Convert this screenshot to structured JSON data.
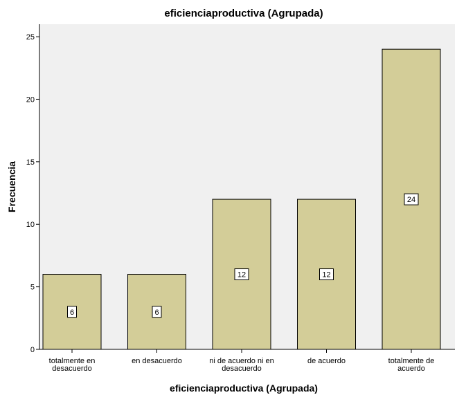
{
  "chart_data": {
    "type": "bar",
    "title": "eficienciaproductiva (Agrupada)",
    "xlabel": "eficienciaproductiva (Agrupada)",
    "ylabel": "Frecuencia",
    "categories": [
      [
        "totalmente en",
        "desacuerdo"
      ],
      [
        "en desacuerdo"
      ],
      [
        "ni de acuerdo ni en",
        "desacuerdo"
      ],
      [
        "de acuerdo"
      ],
      [
        "totalmente de",
        "acuerdo"
      ]
    ],
    "values": [
      6,
      6,
      12,
      12,
      24
    ],
    "ylim": [
      0,
      26
    ],
    "yticks": [
      0,
      5,
      10,
      15,
      20,
      25
    ],
    "grid": false,
    "legend": "none",
    "colors": {
      "plot_bg": "#f0f0f0",
      "bar_fill": "#d3cd98",
      "bar_stroke": "#000000",
      "label_box": "#ffffff"
    }
  }
}
